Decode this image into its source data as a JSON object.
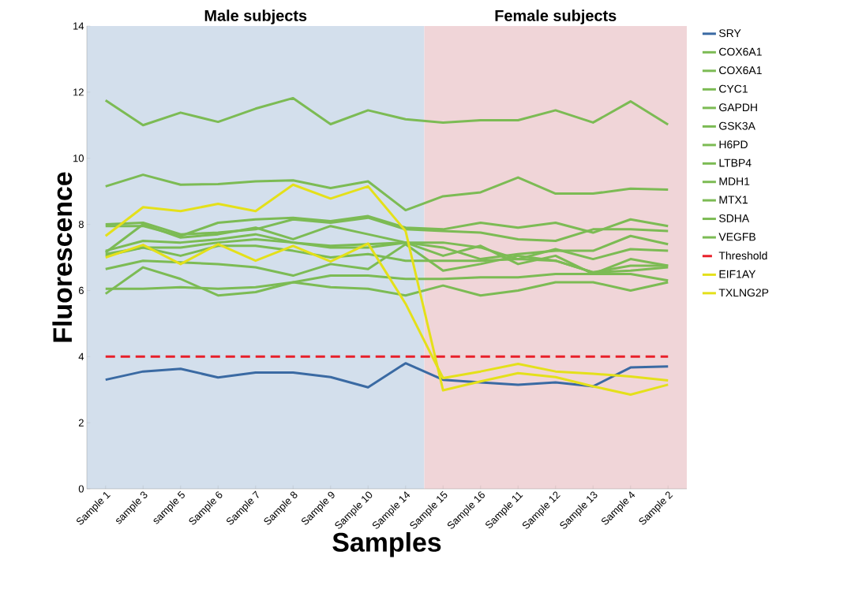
{
  "chart_data": {
    "type": "line",
    "xlabel": "Samples",
    "ylabel": "Fluorescence",
    "categories": [
      "Sample 1",
      "sample 3",
      "sample 5",
      "Sample 6",
      "Sample 7",
      "Sample 8",
      "Sample 9",
      "Sample 10",
      "Sample 14",
      "Sample 15",
      "Sample 16",
      "Sample 11",
      "Sample 12",
      "Sample 13",
      "Sample 4",
      "Sample 2"
    ],
    "series": [
      {
        "name": "SRY",
        "color": "#3a6aa3",
        "values": [
          3.3,
          3.55,
          3.63,
          3.37,
          3.52,
          3.52,
          3.38,
          3.07,
          3.8,
          3.3,
          3.22,
          3.15,
          3.22,
          3.1,
          3.67,
          3.7
        ]
      },
      {
        "name": "COX6A1",
        "color": "#7cbb54",
        "values": [
          11.75,
          11.0,
          11.38,
          11.1,
          11.5,
          11.82,
          11.03,
          11.45,
          11.18,
          11.08,
          11.15,
          11.15,
          11.45,
          11.08,
          11.72,
          11.02
        ]
      },
      {
        "name": "COX6A1",
        "color": "#7cbb54",
        "values": [
          9.15,
          9.5,
          9.2,
          9.22,
          9.3,
          9.33,
          9.1,
          9.3,
          8.43,
          8.85,
          8.97,
          9.42,
          8.93,
          8.93,
          9.08,
          9.05
        ]
      },
      {
        "name": "CYC1",
        "color": "#7cbb54",
        "values": [
          7.95,
          7.95,
          7.65,
          8.05,
          8.15,
          8.2,
          8.1,
          8.25,
          7.9,
          7.85,
          8.05,
          7.9,
          8.05,
          7.75,
          8.15,
          7.95
        ]
      },
      {
        "name": "GAPDH",
        "color": "#7cbb54",
        "values": [
          8.0,
          8.05,
          7.7,
          7.75,
          7.85,
          8.15,
          8.05,
          8.2,
          7.85,
          7.8,
          7.75,
          7.55,
          7.5,
          7.85,
          7.85,
          7.8
        ]
      },
      {
        "name": "GSK3A",
        "color": "#7cbb54",
        "values": [
          7.15,
          8.0,
          7.6,
          7.7,
          7.9,
          7.55,
          7.95,
          7.7,
          7.45,
          7.3,
          6.95,
          7.1,
          7.2,
          7.2,
          7.65,
          7.4
        ]
      },
      {
        "name": "H6PD",
        "color": "#7cbb54",
        "values": [
          7.2,
          7.5,
          7.45,
          7.55,
          7.7,
          7.45,
          7.3,
          7.3,
          7.45,
          7.45,
          7.3,
          6.95,
          7.25,
          6.95,
          7.25,
          7.2
        ]
      },
      {
        "name": "LTBP4",
        "color": "#7cbb54",
        "values": [
          7.1,
          7.3,
          7.3,
          7.45,
          7.55,
          7.45,
          7.35,
          7.4,
          7.45,
          7.05,
          7.35,
          6.8,
          7.05,
          6.5,
          6.95,
          6.75
        ]
      },
      {
        "name": "MDH1",
        "color": "#7cbb54",
        "values": [
          7.05,
          7.3,
          7.05,
          7.35,
          7.35,
          7.2,
          7.0,
          7.1,
          6.9,
          6.9,
          6.9,
          6.95,
          6.9,
          6.55,
          6.6,
          6.7
        ]
      },
      {
        "name": "MTX1",
        "color": "#7cbb54",
        "values": [
          6.65,
          6.9,
          6.85,
          6.8,
          6.7,
          6.45,
          6.8,
          6.65,
          7.4,
          6.6,
          6.8,
          7.05,
          6.9,
          6.55,
          6.75,
          6.75
        ]
      },
      {
        "name": "SDHA",
        "color": "#7cbb54",
        "values": [
          6.05,
          6.05,
          6.1,
          6.05,
          6.1,
          6.25,
          6.45,
          6.45,
          6.35,
          6.35,
          6.4,
          6.4,
          6.5,
          6.5,
          6.5,
          6.3
        ]
      },
      {
        "name": "VEGFB",
        "color": "#7cbb54",
        "values": [
          5.9,
          6.7,
          6.35,
          5.85,
          5.95,
          6.25,
          6.1,
          6.05,
          5.85,
          6.15,
          5.85,
          6.0,
          6.25,
          6.25,
          6.0,
          6.25
        ]
      },
      {
        "name": "Threshold",
        "color": "#e8202a",
        "line_style": "dashed",
        "values": [
          4,
          4,
          4,
          4,
          4,
          4,
          4,
          4,
          4,
          4,
          4,
          4,
          4,
          4,
          4,
          4
        ]
      },
      {
        "name": "EIF1AY",
        "color": "#e4e01a",
        "values": [
          7.65,
          8.52,
          8.4,
          8.62,
          8.4,
          9.2,
          8.78,
          9.15,
          7.8,
          2.98,
          3.25,
          3.5,
          3.38,
          3.1,
          2.85,
          3.15
        ]
      },
      {
        "name": "TXLNG2P",
        "color": "#e4e01a",
        "values": [
          7.0,
          7.38,
          6.8,
          7.4,
          6.9,
          7.35,
          6.88,
          7.42,
          5.6,
          3.35,
          3.55,
          3.78,
          3.55,
          3.48,
          3.4,
          3.28
        ]
      }
    ],
    "annotations": [
      "Male subjects",
      "Female subjects"
    ],
    "ylim": [
      0,
      14
    ],
    "yticks": [
      0,
      2,
      4,
      6,
      8,
      10,
      12,
      14
    ],
    "grid": false,
    "legend": "right",
    "marker": "none",
    "line_style": "solid"
  }
}
